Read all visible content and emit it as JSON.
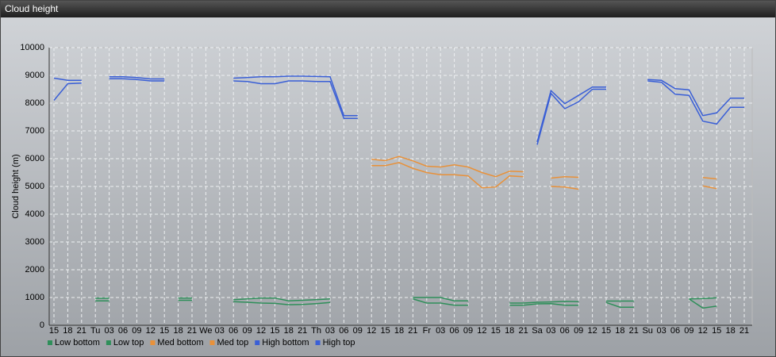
{
  "window_title": "Cloud height",
  "chart_data": {
    "type": "line",
    "ylabel": "Cloud height (m)",
    "categories": [
      "15",
      "18",
      "21",
      "Tu",
      "03",
      "06",
      "09",
      "12",
      "15",
      "18",
      "21",
      "We",
      "03",
      "06",
      "09",
      "12",
      "15",
      "18",
      "21",
      "Th",
      "03",
      "06",
      "09",
      "12",
      "15",
      "18",
      "21",
      "Fr",
      "03",
      "06",
      "09",
      "12",
      "15",
      "18",
      "21",
      "Sa",
      "03",
      "06",
      "09",
      "12",
      "15",
      "18",
      "21",
      "Su",
      "03",
      "06",
      "09",
      "12",
      "15",
      "18",
      "21"
    ],
    "ylim": [
      0,
      10000
    ],
    "yticks": [
      0,
      1000,
      2000,
      3000,
      4000,
      5000,
      6000,
      7000,
      8000,
      9000,
      10000
    ],
    "grid": true,
    "series": [
      {
        "name": "Low bottom",
        "color": "#2f8f5a",
        "values": [
          null,
          null,
          null,
          880,
          880,
          null,
          null,
          null,
          null,
          900,
          900,
          null,
          null,
          850,
          830,
          800,
          790,
          740,
          750,
          780,
          820,
          null,
          null,
          null,
          null,
          null,
          950,
          800,
          800,
          720,
          720,
          null,
          null,
          720,
          720,
          770,
          780,
          720,
          720,
          null,
          820,
          650,
          650,
          null,
          null,
          null,
          950,
          620,
          690,
          null,
          null
        ]
      },
      {
        "name": "Low top",
        "color": "#2f8f5a",
        "values": [
          null,
          null,
          null,
          970,
          970,
          null,
          null,
          null,
          null,
          980,
          980,
          null,
          null,
          920,
          950,
          980,
          980,
          880,
          900,
          920,
          950,
          null,
          null,
          null,
          null,
          null,
          1000,
          1000,
          1000,
          880,
          880,
          null,
          null,
          800,
          800,
          830,
          840,
          860,
          850,
          null,
          870,
          870,
          870,
          null,
          null,
          null,
          950,
          960,
          990,
          null,
          null
        ]
      },
      {
        "name": "Med bottom",
        "color": "#e8913a",
        "values": [
          null,
          null,
          null,
          null,
          null,
          null,
          null,
          null,
          null,
          null,
          null,
          null,
          null,
          null,
          null,
          null,
          null,
          null,
          null,
          null,
          null,
          null,
          null,
          5750,
          5750,
          5860,
          5650,
          5500,
          5420,
          5420,
          5380,
          4950,
          4980,
          5380,
          5350,
          null,
          5000,
          4980,
          4900,
          null,
          null,
          null,
          null,
          null,
          null,
          null,
          null,
          5020,
          4920,
          null,
          null
        ]
      },
      {
        "name": "Med top",
        "color": "#e8913a",
        "values": [
          null,
          null,
          null,
          null,
          null,
          null,
          null,
          null,
          null,
          null,
          null,
          null,
          null,
          null,
          null,
          null,
          null,
          null,
          null,
          null,
          null,
          null,
          null,
          5980,
          5930,
          6080,
          5920,
          5730,
          5700,
          5780,
          5700,
          5500,
          5350,
          5550,
          5530,
          null,
          5300,
          5350,
          5330,
          null,
          null,
          null,
          null,
          null,
          null,
          null,
          null,
          5320,
          5270,
          null,
          null
        ]
      },
      {
        "name": "High bottom",
        "color": "#3a5fd6",
        "values": [
          8100,
          8700,
          8720,
          null,
          8880,
          8880,
          8850,
          8800,
          8800,
          null,
          null,
          null,
          null,
          8800,
          8780,
          8700,
          8700,
          8800,
          8800,
          8780,
          8780,
          7450,
          7450,
          null,
          null,
          null,
          null,
          null,
          null,
          null,
          null,
          null,
          null,
          null,
          null,
          6500,
          8350,
          7800,
          8050,
          8500,
          8500,
          null,
          null,
          8800,
          8750,
          8320,
          8280,
          7350,
          7250,
          7850,
          7850
        ]
      },
      {
        "name": "High top",
        "color": "#3a5fd6",
        "values": [
          8900,
          8820,
          8820,
          null,
          8950,
          8950,
          8920,
          8870,
          8870,
          null,
          null,
          null,
          null,
          8900,
          8920,
          8950,
          8950,
          8970,
          8970,
          8960,
          8950,
          7550,
          7550,
          null,
          null,
          null,
          null,
          null,
          null,
          null,
          null,
          null,
          null,
          null,
          null,
          6600,
          8450,
          7980,
          8280,
          8580,
          8580,
          null,
          null,
          8850,
          8820,
          8520,
          8480,
          7550,
          7650,
          8180,
          8180
        ]
      }
    ]
  }
}
